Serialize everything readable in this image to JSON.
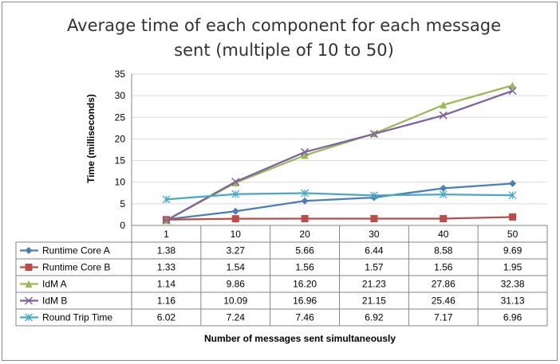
{
  "chart_data": {
    "type": "line",
    "title_lines": [
      "Average time of each component for each message",
      "sent (multiple of 10 to 50)"
    ],
    "xlabel": "Number of messages sent simultaneously",
    "ylabel": "Time (milliseconds)",
    "ylim": [
      0,
      35
    ],
    "yticks": [
      "0",
      "5",
      "10",
      "15",
      "20",
      "25",
      "30",
      "35"
    ],
    "categories": [
      "1",
      "10",
      "20",
      "30",
      "40",
      "50"
    ],
    "grid": true,
    "legend": "data-table",
    "series": [
      {
        "name": "Runtime Core A",
        "color": "#4a7ebb",
        "marker": "diamond",
        "values": [
          1.38,
          3.27,
          5.66,
          6.44,
          8.58,
          9.69
        ],
        "labels": [
          "1.38",
          "3.27",
          "5.66",
          "6.44",
          "8.58",
          "9.69"
        ]
      },
      {
        "name": "Runtime Core B",
        "color": "#be4b48",
        "marker": "square",
        "values": [
          1.33,
          1.54,
          1.56,
          1.57,
          1.56,
          1.95
        ],
        "labels": [
          "1.33",
          "1.54",
          "1.56",
          "1.57",
          "1.56",
          "1.95"
        ]
      },
      {
        "name": "IdM A",
        "color": "#98b954",
        "marker": "triangle",
        "values": [
          1.14,
          9.86,
          16.2,
          21.23,
          27.86,
          32.38
        ],
        "labels": [
          "1.14",
          "9.86",
          "16.20",
          "21.23",
          "27.86",
          "32.38"
        ]
      },
      {
        "name": "IdM B",
        "color": "#7d60a0",
        "marker": "x",
        "values": [
          1.16,
          10.09,
          16.96,
          21.15,
          25.46,
          31.13
        ],
        "labels": [
          "1.16",
          "10.09",
          "16.96",
          "21.15",
          "25.46",
          "31.13"
        ]
      },
      {
        "name": "Round Trip Time",
        "color": "#46aac5",
        "marker": "star",
        "values": [
          6.02,
          7.24,
          7.46,
          6.92,
          7.17,
          6.96
        ],
        "labels": [
          "6.02",
          "7.24",
          "7.46",
          "6.92",
          "7.17",
          "6.96"
        ]
      }
    ]
  }
}
